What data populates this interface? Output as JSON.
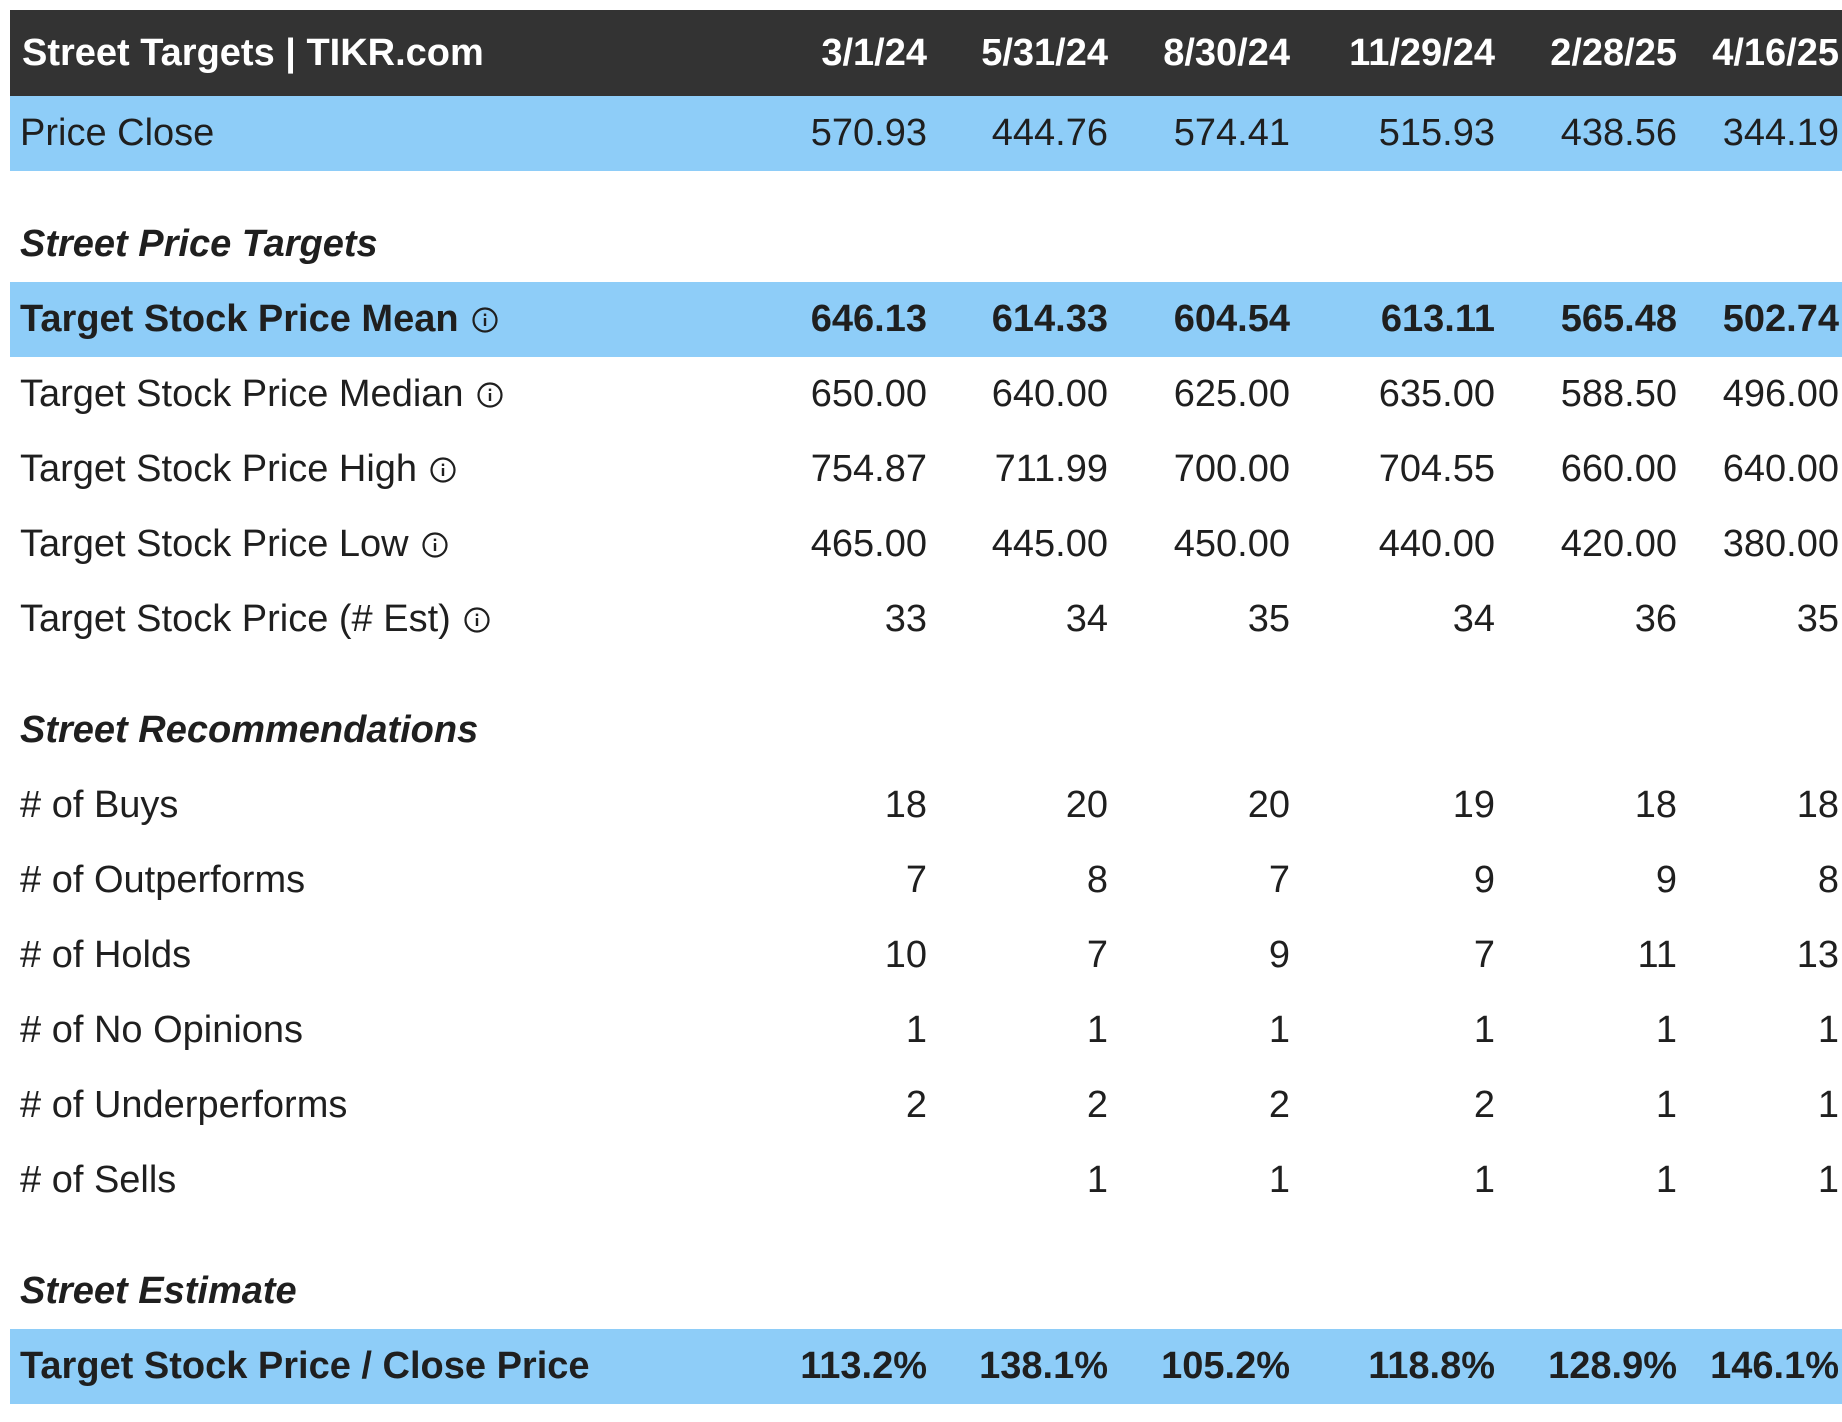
{
  "header": {
    "title": "Street Targets | TIKR.com",
    "dates": [
      "3/1/24",
      "5/31/24",
      "8/30/24",
      "11/29/24",
      "2/28/25",
      "4/16/25"
    ]
  },
  "price_close": {
    "label": "Price Close",
    "values": [
      "570.93",
      "444.76",
      "574.41",
      "515.93",
      "438.56",
      "344.19"
    ]
  },
  "price_targets": {
    "section_title": "Street Price Targets",
    "rows": [
      {
        "label": "Target Stock Price Mean",
        "values": [
          "646.13",
          "614.33",
          "604.54",
          "613.11",
          "565.48",
          "502.74"
        ]
      },
      {
        "label": "Target Stock Price Median",
        "values": [
          "650.00",
          "640.00",
          "625.00",
          "635.00",
          "588.50",
          "496.00"
        ]
      },
      {
        "label": "Target Stock Price High",
        "values": [
          "754.87",
          "711.99",
          "700.00",
          "704.55",
          "660.00",
          "640.00"
        ]
      },
      {
        "label": "Target Stock Price Low",
        "values": [
          "465.00",
          "445.00",
          "450.00",
          "440.00",
          "420.00",
          "380.00"
        ]
      },
      {
        "label": "Target Stock Price (# Est)",
        "values": [
          "33",
          "34",
          "35",
          "34",
          "36",
          "35"
        ]
      }
    ]
  },
  "recommendations": {
    "section_title": "Street Recommendations",
    "rows": [
      {
        "label": "# of Buys",
        "values": [
          "18",
          "20",
          "20",
          "19",
          "18",
          "18"
        ]
      },
      {
        "label": "# of Outperforms",
        "values": [
          "7",
          "8",
          "7",
          "9",
          "9",
          "8"
        ]
      },
      {
        "label": "# of Holds",
        "values": [
          "10",
          "7",
          "9",
          "7",
          "11",
          "13"
        ]
      },
      {
        "label": "# of No Opinions",
        "values": [
          "1",
          "1",
          "1",
          "1",
          "1",
          "1"
        ]
      },
      {
        "label": "# of Underperforms",
        "values": [
          "2",
          "2",
          "2",
          "2",
          "1",
          "1"
        ]
      },
      {
        "label": "# of Sells",
        "values": [
          "",
          "1",
          "1",
          "1",
          "1",
          "1"
        ]
      }
    ]
  },
  "estimate": {
    "section_title": "Street Estimate",
    "rows": [
      {
        "label": "Target Stock Price / Close Price",
        "values": [
          "113.2%",
          "138.1%",
          "105.2%",
          "118.8%",
          "128.9%",
          "146.1%"
        ]
      }
    ]
  },
  "colors": {
    "header_bg": "#333333",
    "highlight_bg": "#8ecdf8"
  },
  "icons": {
    "info": "info-circle-icon"
  }
}
